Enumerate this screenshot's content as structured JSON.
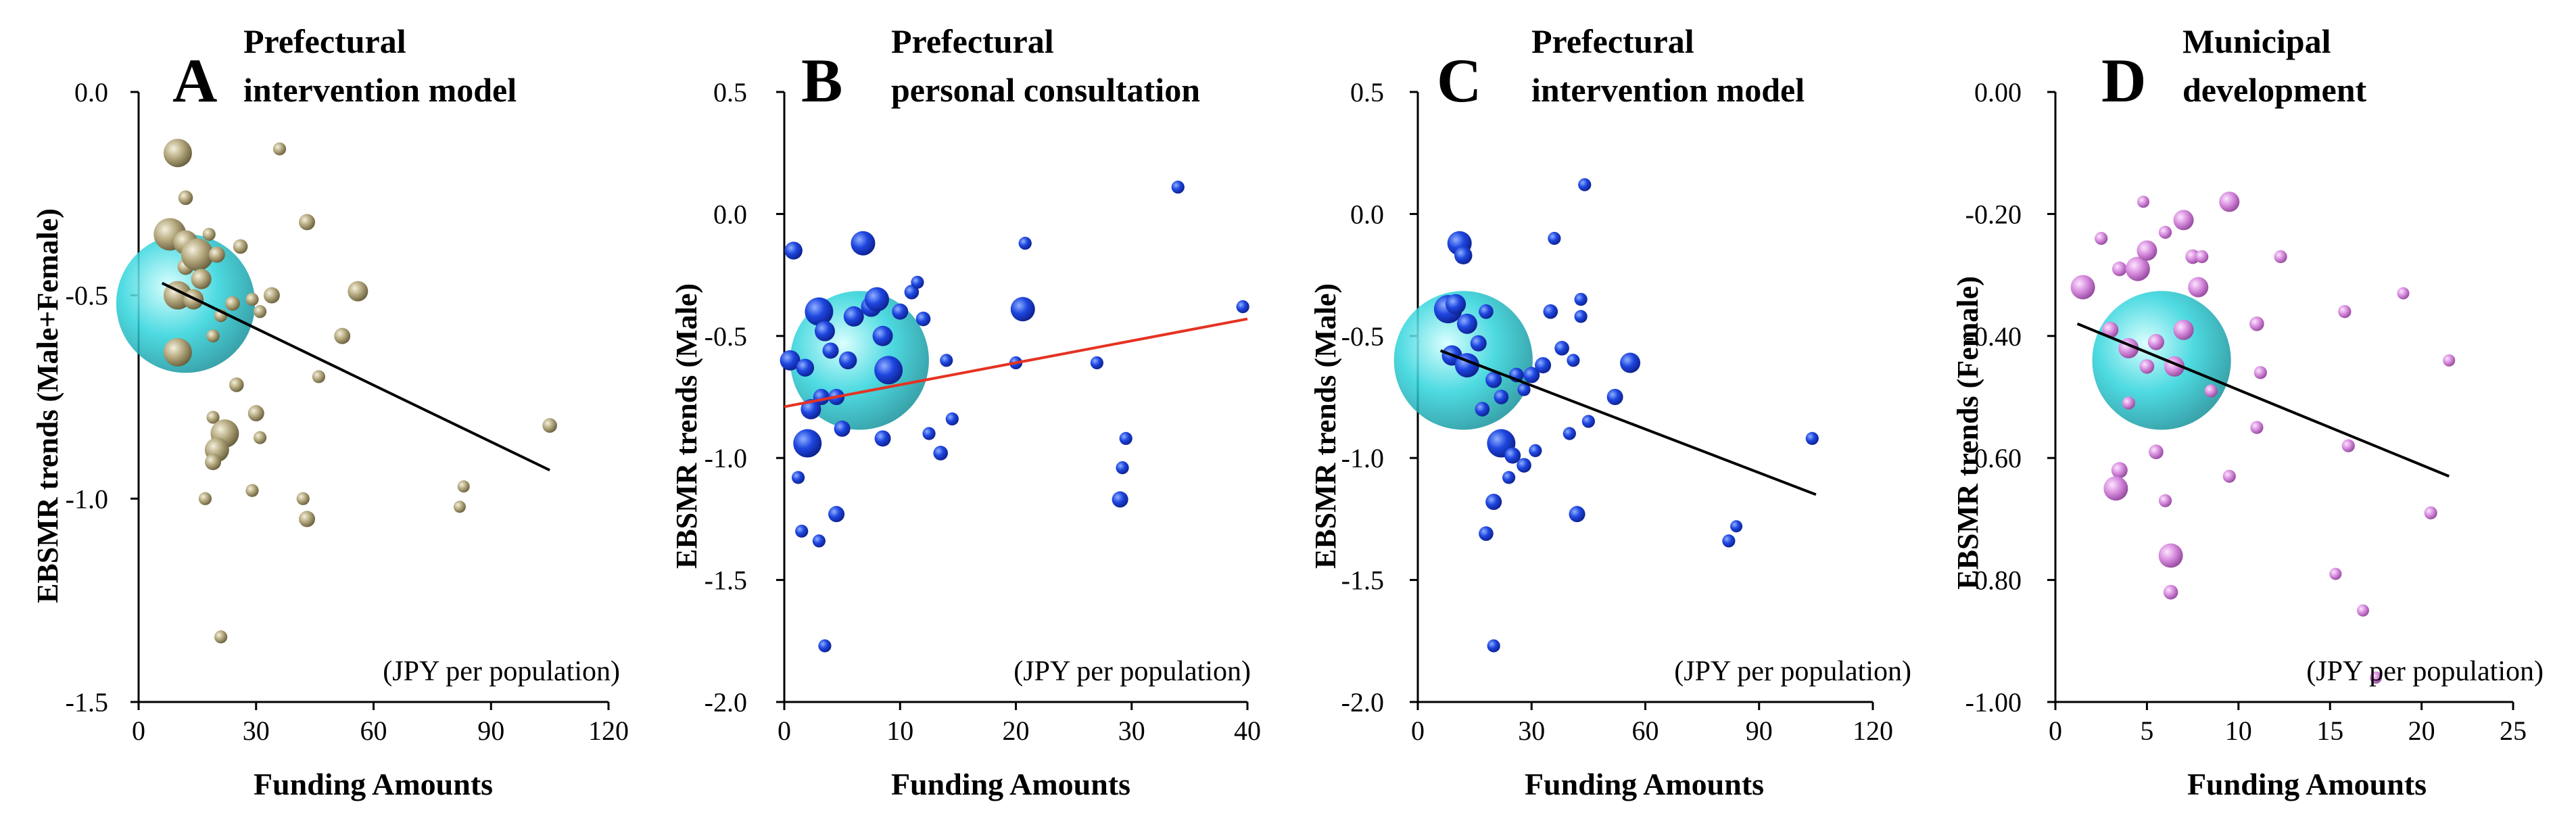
{
  "chart_data": [
    {
      "type": "scatter",
      "panel_letter": "A",
      "title_lines": [
        "Prefectural",
        "intervention model"
      ],
      "xlabel": "Funding Amounts",
      "ylabel": "EBSMR trends (Male+Female)",
      "unit_note": "(JPY per population)",
      "xlim": [
        0,
        120
      ],
      "ylim": [
        -1.5,
        0.0
      ],
      "xticks": [
        0,
        30,
        60,
        90,
        120
      ],
      "xtick_labels": [
        "0",
        "30",
        "60",
        "90",
        "120"
      ],
      "yticks": [
        -1.5,
        -1.0,
        -0.5,
        0.0
      ],
      "ytick_labels": [
        "-1.5",
        "-1.0",
        "-0.5",
        "0.0"
      ],
      "bubble_color": "#a89c72",
      "highlight_color": "#2fd4dc",
      "line_color": "#000000",
      "trend_line": {
        "x": [
          6,
          105
        ],
        "y": [
          -0.47,
          -0.93
        ]
      },
      "highlight": {
        "x": 12,
        "y": -0.52,
        "size": 9
      },
      "points": [
        {
          "x": 10,
          "y": -0.15,
          "size": 3.5
        },
        {
          "x": 12,
          "y": -0.26,
          "size": 1.8
        },
        {
          "x": 12,
          "y": -0.43,
          "size": 2.0
        },
        {
          "x": 8,
          "y": -0.35,
          "size": 4.0
        },
        {
          "x": 12,
          "y": -0.37,
          "size": 3.0
        },
        {
          "x": 15,
          "y": -0.4,
          "size": 4.0
        },
        {
          "x": 16,
          "y": -0.46,
          "size": 2.5
        },
        {
          "x": 10,
          "y": -0.5,
          "size": 3.5
        },
        {
          "x": 14,
          "y": -0.51,
          "size": 2.5
        },
        {
          "x": 18,
          "y": -0.35,
          "size": 1.6
        },
        {
          "x": 20,
          "y": -0.4,
          "size": 2.0
        },
        {
          "x": 26,
          "y": -0.38,
          "size": 1.8
        },
        {
          "x": 10,
          "y": -0.64,
          "size": 3.5
        },
        {
          "x": 19,
          "y": -0.6,
          "size": 1.6
        },
        {
          "x": 21,
          "y": -0.55,
          "size": 1.6
        },
        {
          "x": 24,
          "y": -0.52,
          "size": 1.8
        },
        {
          "x": 29,
          "y": -0.51,
          "size": 1.6
        },
        {
          "x": 31,
          "y": -0.54,
          "size": 1.6
        },
        {
          "x": 34,
          "y": -0.5,
          "size": 2.0
        },
        {
          "x": 36,
          "y": -0.14,
          "size": 1.6
        },
        {
          "x": 43,
          "y": -0.32,
          "size": 2.0
        },
        {
          "x": 56,
          "y": -0.49,
          "size": 2.5
        },
        {
          "x": 52,
          "y": -0.6,
          "size": 2.0
        },
        {
          "x": 25,
          "y": -0.72,
          "size": 1.8
        },
        {
          "x": 30,
          "y": -0.79,
          "size": 2.0
        },
        {
          "x": 19,
          "y": -0.8,
          "size": 1.6
        },
        {
          "x": 31,
          "y": -0.85,
          "size": 1.6
        },
        {
          "x": 46,
          "y": -0.7,
          "size": 1.6
        },
        {
          "x": 22,
          "y": -0.84,
          "size": 3.5
        },
        {
          "x": 20,
          "y": -0.88,
          "size": 3.0
        },
        {
          "x": 19,
          "y": -0.91,
          "size": 2.0
        },
        {
          "x": 29,
          "y": -0.98,
          "size": 1.6
        },
        {
          "x": 17,
          "y": -1.0,
          "size": 1.6
        },
        {
          "x": 42,
          "y": -1.0,
          "size": 1.6
        },
        {
          "x": 43,
          "y": -1.05,
          "size": 2.0
        },
        {
          "x": 83,
          "y": -0.97,
          "size": 1.5
        },
        {
          "x": 82,
          "y": -1.02,
          "size": 1.5
        },
        {
          "x": 105,
          "y": -0.82,
          "size": 1.8
        },
        {
          "x": 21,
          "y": -1.34,
          "size": 1.6
        }
      ]
    },
    {
      "type": "scatter",
      "panel_letter": "B",
      "title_lines": [
        "Prefectural",
        "personal consultation"
      ],
      "xlabel": "Funding Amounts",
      "ylabel": "EBSMR trends (Male)",
      "unit_note": "(JPY per population)",
      "xlim": [
        0,
        40
      ],
      "ylim": [
        -2.0,
        0.5
      ],
      "xticks": [
        0,
        10,
        20,
        30,
        40
      ],
      "xtick_labels": [
        "0",
        "10",
        "20",
        "30",
        "40"
      ],
      "yticks": [
        -2.0,
        -1.5,
        -1.0,
        -0.5,
        0.0,
        0.5
      ],
      "ytick_labels": [
        "-2.0",
        "-1.5",
        "-1.0",
        "-0.5",
        "0.0",
        "0.5"
      ],
      "bubble_color": "#1e46e0",
      "highlight_color": "#2fd4dc",
      "line_color": "#e53222",
      "trend_line": {
        "x": [
          0,
          40
        ],
        "y": [
          -0.79,
          -0.43
        ]
      },
      "highlight": {
        "x": 6.5,
        "y": -0.6,
        "size": 9
      },
      "points": [
        {
          "x": 0.8,
          "y": -0.15,
          "size": 2.2
        },
        {
          "x": 0.5,
          "y": -0.6,
          "size": 2.5
        },
        {
          "x": 1.8,
          "y": -0.63,
          "size": 2.2
        },
        {
          "x": 3.0,
          "y": -0.4,
          "size": 3.5
        },
        {
          "x": 3.5,
          "y": -0.48,
          "size": 2.5
        },
        {
          "x": 4.0,
          "y": -0.56,
          "size": 2.0
        },
        {
          "x": 3.2,
          "y": -0.75,
          "size": 2.0
        },
        {
          "x": 2.3,
          "y": -0.8,
          "size": 2.5
        },
        {
          "x": 2.0,
          "y": -0.94,
          "size": 3.5
        },
        {
          "x": 4.5,
          "y": -0.75,
          "size": 2.0
        },
        {
          "x": 5.0,
          "y": -0.88,
          "size": 2.0
        },
        {
          "x": 5.5,
          "y": -0.6,
          "size": 2.2
        },
        {
          "x": 6.0,
          "y": -0.42,
          "size": 2.5
        },
        {
          "x": 6.8,
          "y": -0.12,
          "size": 3.0
        },
        {
          "x": 7.5,
          "y": -0.38,
          "size": 2.5
        },
        {
          "x": 8.0,
          "y": -0.35,
          "size": 3.0
        },
        {
          "x": 8.5,
          "y": -0.5,
          "size": 2.5
        },
        {
          "x": 9.0,
          "y": -0.64,
          "size": 3.5
        },
        {
          "x": 10.0,
          "y": -0.4,
          "size": 2.0
        },
        {
          "x": 11.0,
          "y": -0.32,
          "size": 1.8
        },
        {
          "x": 11.5,
          "y": -0.28,
          "size": 1.6
        },
        {
          "x": 12.0,
          "y": -0.43,
          "size": 1.8
        },
        {
          "x": 12.5,
          "y": -0.9,
          "size": 1.6
        },
        {
          "x": 13.5,
          "y": -0.98,
          "size": 1.8
        },
        {
          "x": 14.0,
          "y": -0.6,
          "size": 1.6
        },
        {
          "x": 14.5,
          "y": -0.84,
          "size": 1.6
        },
        {
          "x": 8.5,
          "y": -0.92,
          "size": 2.0
        },
        {
          "x": 1.2,
          "y": -1.08,
          "size": 1.6
        },
        {
          "x": 1.5,
          "y": -1.3,
          "size": 1.6
        },
        {
          "x": 3.0,
          "y": -1.34,
          "size": 1.6
        },
        {
          "x": 4.5,
          "y": -1.23,
          "size": 2.0
        },
        {
          "x": 3.5,
          "y": -1.77,
          "size": 1.6
        },
        {
          "x": 20.0,
          "y": -0.61,
          "size": 1.6
        },
        {
          "x": 20.6,
          "y": -0.39,
          "size": 3.0
        },
        {
          "x": 20.8,
          "y": -0.12,
          "size": 1.6
        },
        {
          "x": 27.0,
          "y": -0.61,
          "size": 1.6
        },
        {
          "x": 29.0,
          "y": -1.17,
          "size": 2.0
        },
        {
          "x": 29.2,
          "y": -1.04,
          "size": 1.6
        },
        {
          "x": 29.5,
          "y": -0.92,
          "size": 1.6
        },
        {
          "x": 34.0,
          "y": 0.11,
          "size": 1.6
        },
        {
          "x": 39.6,
          "y": -0.38,
          "size": 1.6
        }
      ]
    },
    {
      "type": "scatter",
      "panel_letter": "C",
      "title_lines": [
        "Prefectural",
        "intervention model"
      ],
      "xlabel": "Funding Amounts",
      "ylabel": "EBSMR trends (Male)",
      "unit_note": "(JPY per population)",
      "xlim": [
        0,
        120
      ],
      "ylim": [
        -2.0,
        0.5
      ],
      "xticks": [
        0,
        30,
        60,
        90,
        120
      ],
      "xtick_labels": [
        "0",
        "30",
        "60",
        "90",
        "120"
      ],
      "yticks": [
        -2.0,
        -1.5,
        -1.0,
        -0.5,
        0.0,
        0.5
      ],
      "ytick_labels": [
        "-2.0",
        "-1.5",
        "-1.0",
        "-0.5",
        "0.0",
        "0.5"
      ],
      "bubble_color": "#1e46e0",
      "highlight_color": "#2fd4dc",
      "line_color": "#000000",
      "trend_line": {
        "x": [
          6,
          105
        ],
        "y": [
          -0.56,
          -1.15
        ]
      },
      "highlight": {
        "x": 12,
        "y": -0.6,
        "size": 9
      },
      "points": [
        {
          "x": 11,
          "y": -0.12,
          "size": 3.0
        },
        {
          "x": 12,
          "y": -0.17,
          "size": 2.2
        },
        {
          "x": 8,
          "y": -0.39,
          "size": 3.5
        },
        {
          "x": 10,
          "y": -0.37,
          "size": 2.5
        },
        {
          "x": 13,
          "y": -0.45,
          "size": 2.5
        },
        {
          "x": 9,
          "y": -0.58,
          "size": 2.5
        },
        {
          "x": 13,
          "y": -0.62,
          "size": 3.0
        },
        {
          "x": 16,
          "y": -0.53,
          "size": 2.0
        },
        {
          "x": 18,
          "y": -0.4,
          "size": 1.8
        },
        {
          "x": 20,
          "y": -0.68,
          "size": 2.0
        },
        {
          "x": 22,
          "y": -0.75,
          "size": 1.8
        },
        {
          "x": 17,
          "y": -0.8,
          "size": 1.8
        },
        {
          "x": 26,
          "y": -0.66,
          "size": 1.8
        },
        {
          "x": 28,
          "y": -0.72,
          "size": 1.6
        },
        {
          "x": 30,
          "y": -0.66,
          "size": 2.0
        },
        {
          "x": 33,
          "y": -0.62,
          "size": 2.0
        },
        {
          "x": 35,
          "y": -0.4,
          "size": 1.8
        },
        {
          "x": 36,
          "y": -0.1,
          "size": 1.6
        },
        {
          "x": 38,
          "y": -0.55,
          "size": 1.8
        },
        {
          "x": 41,
          "y": -0.6,
          "size": 1.6
        },
        {
          "x": 43,
          "y": -0.35,
          "size": 1.6
        },
        {
          "x": 43,
          "y": -0.42,
          "size": 1.6
        },
        {
          "x": 44,
          "y": 0.12,
          "size": 1.6
        },
        {
          "x": 45,
          "y": -0.85,
          "size": 1.6
        },
        {
          "x": 52,
          "y": -0.75,
          "size": 2.0
        },
        {
          "x": 56,
          "y": -0.61,
          "size": 2.5
        },
        {
          "x": 22,
          "y": -0.94,
          "size": 3.5
        },
        {
          "x": 25,
          "y": -0.99,
          "size": 2.0
        },
        {
          "x": 28,
          "y": -1.03,
          "size": 1.8
        },
        {
          "x": 31,
          "y": -0.97,
          "size": 1.6
        },
        {
          "x": 40,
          "y": -0.9,
          "size": 1.6
        },
        {
          "x": 20,
          "y": -1.18,
          "size": 2.0
        },
        {
          "x": 24,
          "y": -1.08,
          "size": 1.6
        },
        {
          "x": 18,
          "y": -1.31,
          "size": 1.8
        },
        {
          "x": 42,
          "y": -1.23,
          "size": 2.0
        },
        {
          "x": 20,
          "y": -1.77,
          "size": 1.6
        },
        {
          "x": 82,
          "y": -1.34,
          "size": 1.6
        },
        {
          "x": 84,
          "y": -1.28,
          "size": 1.5
        },
        {
          "x": 104,
          "y": -0.92,
          "size": 1.6
        }
      ]
    },
    {
      "type": "scatter",
      "panel_letter": "D",
      "title_lines": [
        "Municipal",
        "development"
      ],
      "xlabel": "Funding Amounts",
      "ylabel": "EBSMR trends (Female)",
      "unit_note": "(JPY per population)",
      "xlim": [
        0,
        25
      ],
      "ylim": [
        -1.0,
        0.0
      ],
      "xticks": [
        0,
        5,
        10,
        15,
        20,
        25
      ],
      "xtick_labels": [
        "0",
        "5",
        "10",
        "15",
        "20",
        "25"
      ],
      "yticks": [
        -1.0,
        -0.8,
        -0.6,
        -0.4,
        -0.2,
        0.0
      ],
      "ytick_labels": [
        "-1.00",
        "-0.80",
        "-0.60",
        "-0.40",
        "-0.20",
        "0.00"
      ],
      "bubble_color": "#d98ee0",
      "highlight_color": "#2fd4dc",
      "line_color": "#000000",
      "trend_line": {
        "x": [
          1.2,
          21.5
        ],
        "y": [
          -0.38,
          -0.63
        ]
      },
      "highlight": {
        "x": 5.8,
        "y": -0.44,
        "size": 9
      },
      "points": [
        {
          "x": 1.5,
          "y": -0.32,
          "size": 3.0
        },
        {
          "x": 2.5,
          "y": -0.24,
          "size": 1.6
        },
        {
          "x": 3.5,
          "y": -0.29,
          "size": 1.8
        },
        {
          "x": 4.5,
          "y": -0.29,
          "size": 3.0
        },
        {
          "x": 5.0,
          "y": -0.26,
          "size": 2.5
        },
        {
          "x": 4.8,
          "y": -0.18,
          "size": 1.5
        },
        {
          "x": 6.0,
          "y": -0.23,
          "size": 1.6
        },
        {
          "x": 7.0,
          "y": -0.21,
          "size": 2.5
        },
        {
          "x": 7.5,
          "y": -0.27,
          "size": 1.8
        },
        {
          "x": 8.0,
          "y": -0.27,
          "size": 1.6
        },
        {
          "x": 9.5,
          "y": -0.18,
          "size": 2.5
        },
        {
          "x": 7.8,
          "y": -0.32,
          "size": 2.5
        },
        {
          "x": 3.0,
          "y": -0.39,
          "size": 2.0
        },
        {
          "x": 4.0,
          "y": -0.42,
          "size": 2.5
        },
        {
          "x": 5.5,
          "y": -0.41,
          "size": 2.0
        },
        {
          "x": 6.5,
          "y": -0.45,
          "size": 2.5
        },
        {
          "x": 7.0,
          "y": -0.39,
          "size": 2.5
        },
        {
          "x": 5.0,
          "y": -0.45,
          "size": 1.8
        },
        {
          "x": 8.5,
          "y": -0.49,
          "size": 1.6
        },
        {
          "x": 11.0,
          "y": -0.38,
          "size": 1.8
        },
        {
          "x": 11.2,
          "y": -0.46,
          "size": 1.6
        },
        {
          "x": 12.3,
          "y": -0.27,
          "size": 1.6
        },
        {
          "x": 15.8,
          "y": -0.36,
          "size": 1.6
        },
        {
          "x": 19.0,
          "y": -0.33,
          "size": 1.5
        },
        {
          "x": 21.5,
          "y": -0.44,
          "size": 1.5
        },
        {
          "x": 4.0,
          "y": -0.51,
          "size": 1.6
        },
        {
          "x": 5.5,
          "y": -0.59,
          "size": 1.8
        },
        {
          "x": 3.5,
          "y": -0.62,
          "size": 2.0
        },
        {
          "x": 3.3,
          "y": -0.65,
          "size": 3.0
        },
        {
          "x": 6.0,
          "y": -0.67,
          "size": 1.6
        },
        {
          "x": 9.5,
          "y": -0.63,
          "size": 1.6
        },
        {
          "x": 11.0,
          "y": -0.55,
          "size": 1.6
        },
        {
          "x": 16.0,
          "y": -0.58,
          "size": 1.6
        },
        {
          "x": 6.3,
          "y": -0.76,
          "size": 3.0
        },
        {
          "x": 6.3,
          "y": -0.82,
          "size": 1.8
        },
        {
          "x": 15.3,
          "y": -0.79,
          "size": 1.5
        },
        {
          "x": 16.8,
          "y": -0.85,
          "size": 1.5
        },
        {
          "x": 20.5,
          "y": -0.69,
          "size": 1.6
        },
        {
          "x": 17.5,
          "y": -0.96,
          "size": 1.5
        }
      ]
    }
  ]
}
